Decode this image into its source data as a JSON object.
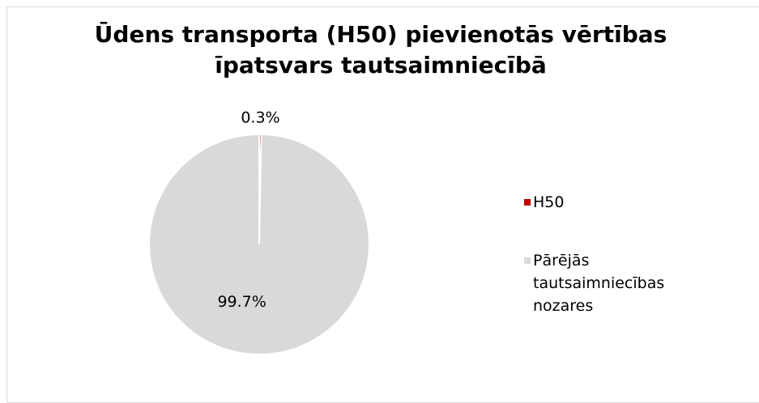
{
  "chart_data": {
    "type": "pie",
    "title": "Ūdens transporta (H50) pievienotās vērtības īpatsvars tautsaimniecībā",
    "categories": [
      "H50",
      "Pārējās tautsaimniecības nozares"
    ],
    "values": [
      0.3,
      99.7
    ],
    "value_labels": [
      "0.3%",
      "99.7%"
    ],
    "colors": [
      "#c00000",
      "#d9d9d9"
    ],
    "legend": "right"
  }
}
